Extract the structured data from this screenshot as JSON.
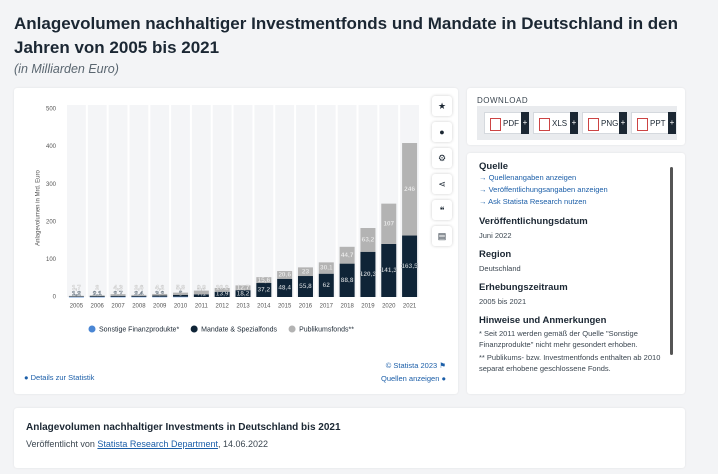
{
  "header": {
    "title": "Anlagevolumen nachhaltiger Investmentfonds und Mandate in Deutschland in den Jahren von 2005 bis 2021",
    "subtitle": "(in Milliarden Euro)"
  },
  "chart_data": {
    "type": "bar",
    "stacked": true,
    "y_axis_label": "Anlagevolumen in Mrd. Euro",
    "categories": [
      "2005",
      "2006",
      "2007",
      "2008",
      "2009",
      "2010",
      "2011",
      "2012",
      "2013",
      "2014",
      "2015",
      "2016",
      "2017",
      "2018",
      "2019",
      "2020",
      "2021"
    ],
    "series": [
      {
        "name": "Sonstige Finanzprodukte*",
        "color": "#4a86d4",
        "values": [
          0.3,
          0.4,
          0.5,
          0.6,
          0.7,
          0.8,
          null,
          null,
          null,
          null,
          null,
          null,
          null,
          null,
          null,
          null,
          null
        ]
      },
      {
        "name": "Mandate & Spezialfonds",
        "color": "#0f2437",
        "values": [
          1.2,
          2.1,
          2.7,
          2.4,
          3.2,
          5.0,
          7.1,
          13.9,
          18.2,
          37.2,
          48.4,
          55.8,
          62,
          88.8,
          120.3,
          141.3,
          163.5
        ],
        "value_labels": [
          "1,2",
          "2,1",
          "2,7",
          "2,4",
          "3,2",
          "5",
          "7,1",
          "13,9",
          "18,2",
          "37,2",
          "48,4",
          "55,8",
          "62",
          "88,8",
          "120,3",
          "141,3",
          "163,5"
        ]
      },
      {
        "name": "Publikumsfonds**",
        "color": "#b3b3b3",
        "values": [
          1.7,
          2.0,
          4.3,
          2.6,
          4.2,
          5.8,
          9.9,
          10.2,
          12.7,
          15.6,
          20.6,
          23,
          30.1,
          44.7,
          63.2,
          107,
          246
        ],
        "value_labels": [
          "1,7",
          "2",
          "4,3",
          "2,6",
          "4,2",
          "5,8",
          "9,9",
          "10,2",
          "12,7",
          "15,6",
          "20,6",
          "23",
          "30,1",
          "44,7",
          "63,2",
          "107",
          "246"
        ]
      }
    ],
    "ylim": [
      0,
      500
    ],
    "yticks": [
      0,
      100,
      200,
      300,
      400,
      500
    ],
    "grid": false,
    "copyright": "© Statista 2023",
    "details_link": "Details zur Statistik",
    "sources_link": "Quellen anzeigen"
  },
  "download": {
    "title": "DOWNLOAD",
    "buttons": [
      "PDF",
      "XLS",
      "PNG",
      "PPT"
    ]
  },
  "info": {
    "source_title": "Quelle",
    "source_links": [
      "Quellenangaben anzeigen",
      "Veröffentlichungsangaben anzeigen",
      "Ask Statista Research nutzen"
    ],
    "fields": [
      {
        "label": "Veröffentlichungsdatum",
        "value": "Juni 2022"
      },
      {
        "label": "Region",
        "value": "Deutschland"
      },
      {
        "label": "Erhebungszeitraum",
        "value": "2005 bis 2021"
      }
    ],
    "notes_title": "Hinweise und Anmerkungen",
    "notes": [
      "* Seit 2011 werden gemäß der Quelle \"Sonstige Finanzprodukte\" nicht mehr gesondert erhoben.",
      "** Publikums- bzw. Investmentfonds enthalten ab 2010 separat erhobene geschlossene Fonds."
    ]
  },
  "related": {
    "title": "Anlagevolumen nachhaltiger Investments in Deutschland bis 2021",
    "prefix": "Veröffentlicht von",
    "author": "Statista Research Department",
    "date": ", 14.06.2022"
  }
}
